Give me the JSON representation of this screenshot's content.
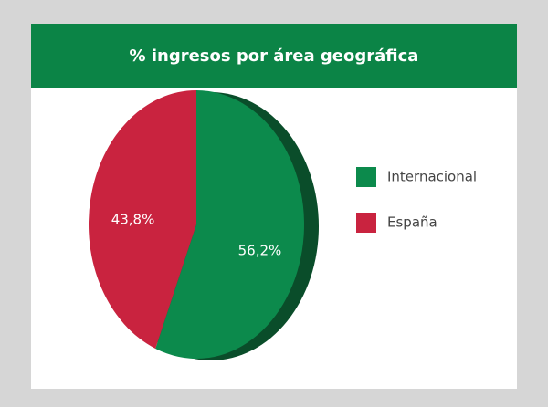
{
  "chart_data": {
    "type": "pie",
    "title": "% ingresos por área geográfica",
    "categories": [
      "Internacional",
      "España"
    ],
    "values": [
      56.2,
      43.8
    ],
    "value_labels": [
      "56,2%",
      "43,8%"
    ],
    "colors": [
      "#0c8a4c",
      "#c9233f"
    ],
    "legend": "right"
  }
}
